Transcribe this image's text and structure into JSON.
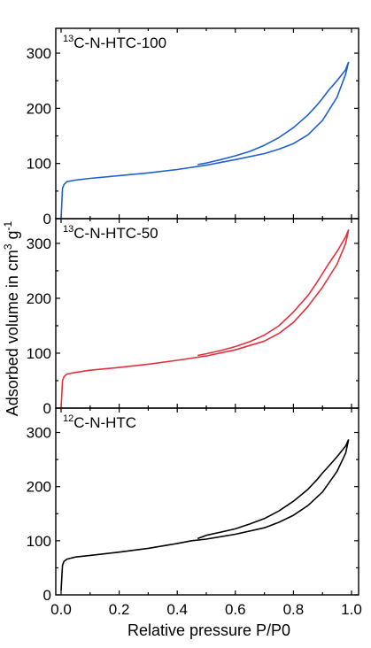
{
  "chart_data": {
    "type": "line",
    "ylabel": "Adsorbed volume in cm3 g-1",
    "ylabel_parts": {
      "main": "Adsorbed volume in cm",
      "sup1": "3",
      "mid": " g",
      "sup2": "-1"
    },
    "xlabel": "Relative pressure P/P0",
    "xlim": [
      0.0,
      1.0
    ],
    "xticks": [
      "0.0",
      "0.2",
      "0.4",
      "0.6",
      "0.8",
      "1.0"
    ],
    "panels": [
      {
        "title": "13C-N-HTC-100",
        "title_parts": {
          "sup": "13",
          "main": "C-N-HTC-100"
        },
        "color": "#1f5fd1",
        "ylim": [
          0,
          345
        ],
        "yticks": [
          "0",
          "100",
          "200",
          "300"
        ],
        "adsorption": {
          "x": [
            0.0,
            0.005,
            0.01,
            0.02,
            0.05,
            0.1,
            0.2,
            0.3,
            0.4,
            0.5,
            0.6,
            0.7,
            0.75,
            0.8,
            0.85,
            0.9,
            0.95,
            0.98,
            0.99
          ],
          "y": [
            0,
            55,
            62,
            67,
            70,
            73,
            78,
            83,
            89,
            97,
            107,
            118,
            126,
            136,
            152,
            178,
            220,
            262,
            284
          ]
        },
        "desorption": {
          "x": [
            0.99,
            0.98,
            0.95,
            0.92,
            0.9,
            0.88,
            0.85,
            0.8,
            0.75,
            0.7,
            0.65,
            0.6,
            0.55,
            0.5,
            0.47
          ],
          "y": [
            284,
            270,
            250,
            232,
            218,
            205,
            188,
            165,
            147,
            133,
            122,
            114,
            107,
            101,
            98
          ]
        }
      },
      {
        "title": "13C-N-HTC-50",
        "title_parts": {
          "sup": "13",
          "main": "C-N-HTC-50"
        },
        "color": "#e5303c",
        "ylim": [
          0,
          345
        ],
        "yticks": [
          "0",
          "100",
          "200",
          "300"
        ],
        "adsorption": {
          "x": [
            0.0,
            0.005,
            0.01,
            0.02,
            0.05,
            0.1,
            0.2,
            0.3,
            0.4,
            0.5,
            0.6,
            0.7,
            0.75,
            0.8,
            0.85,
            0.9,
            0.95,
            0.98,
            0.99
          ],
          "y": [
            0,
            50,
            57,
            62,
            65,
            69,
            74,
            80,
            87,
            95,
            106,
            122,
            136,
            156,
            185,
            220,
            262,
            300,
            325
          ]
        },
        "desorption": {
          "x": [
            0.99,
            0.98,
            0.95,
            0.92,
            0.9,
            0.88,
            0.85,
            0.8,
            0.75,
            0.7,
            0.65,
            0.6,
            0.55,
            0.5,
            0.47
          ],
          "y": [
            325,
            312,
            285,
            262,
            245,
            228,
            205,
            175,
            150,
            133,
            121,
            112,
            105,
            99,
            96
          ]
        }
      },
      {
        "title": "12C-N-HTC",
        "title_parts": {
          "sup": "12",
          "main": "C-N-HTC"
        },
        "color": "#000000",
        "ylim": [
          0,
          345
        ],
        "yticks": [
          "0",
          "100",
          "200",
          "300"
        ],
        "adsorption": {
          "x": [
            0.0,
            0.005,
            0.01,
            0.02,
            0.05,
            0.1,
            0.2,
            0.3,
            0.4,
            0.45,
            0.5,
            0.6,
            0.7,
            0.75,
            0.8,
            0.85,
            0.9,
            0.95,
            0.98,
            0.99
          ],
          "y": [
            8,
            55,
            62,
            66,
            70,
            73,
            79,
            86,
            95,
            100,
            103,
            112,
            124,
            134,
            147,
            165,
            190,
            228,
            262,
            287
          ]
        },
        "desorption": {
          "x": [
            0.99,
            0.98,
            0.95,
            0.92,
            0.9,
            0.88,
            0.85,
            0.8,
            0.75,
            0.7,
            0.65,
            0.6,
            0.55,
            0.5,
            0.47
          ],
          "y": [
            287,
            275,
            255,
            237,
            225,
            212,
            195,
            173,
            155,
            141,
            131,
            122,
            116,
            110,
            104
          ]
        }
      }
    ]
  }
}
